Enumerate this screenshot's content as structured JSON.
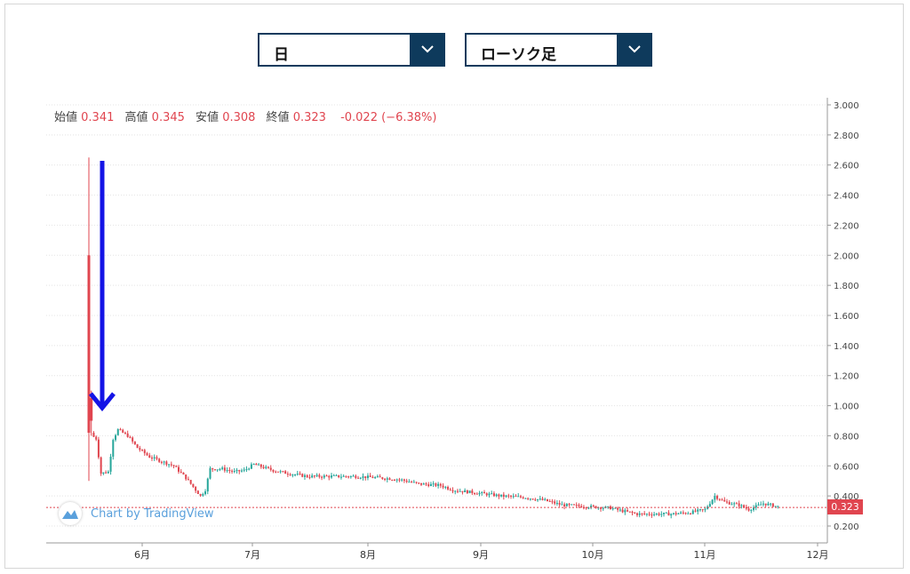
{
  "controls": {
    "period_select": {
      "value": "日",
      "icon": "chevron-down-icon"
    },
    "chart_type_select": {
      "value": "ローソク足",
      "icon": "chevron-down-icon"
    }
  },
  "legend": {
    "open_label": "始値",
    "open_value": "0.341",
    "high_label": "高値",
    "high_value": "0.345",
    "low_label": "安値",
    "low_value": "0.308",
    "close_label": "終値",
    "close_value": "0.323",
    "change": "-0.022 (−6.38%)"
  },
  "attribution": "Chart by TradingView",
  "last_price_label": "0.323",
  "colors": {
    "up": "#26a69a",
    "down": "#e0454f",
    "arrow": "#1414e6",
    "select": "#0e3a5c"
  },
  "chart_data": {
    "type": "candlestick",
    "x_tick_labels": [
      "6月",
      "7月",
      "8月",
      "9月",
      "10月",
      "11月",
      "12月"
    ],
    "y_tick_labels": [
      "3.000",
      "2.800",
      "2.600",
      "2.400",
      "2.200",
      "2.000",
      "1.800",
      "1.600",
      "1.400",
      "1.200",
      "1.000",
      "0.800",
      "0.600",
      "0.400",
      "0.200"
    ],
    "ylim": [
      0.2,
      3.0
    ],
    "y_axis_side": "right",
    "grid": "horizontal-dotted",
    "last_price": 0.323,
    "annotation": "downward arrow pointing to price drop after listing",
    "trend_points": [
      [
        0,
        0.82
      ],
      [
        3,
        0.78
      ],
      [
        5,
        0.55
      ],
      [
        8,
        0.56
      ],
      [
        10,
        0.78
      ],
      [
        12,
        0.84
      ],
      [
        16,
        0.8
      ],
      [
        20,
        0.72
      ],
      [
        25,
        0.66
      ],
      [
        30,
        0.63
      ],
      [
        35,
        0.6
      ],
      [
        40,
        0.52
      ],
      [
        44,
        0.44
      ],
      [
        46,
        0.4
      ],
      [
        48,
        0.44
      ],
      [
        50,
        0.58
      ],
      [
        55,
        0.58
      ],
      [
        60,
        0.56
      ],
      [
        64,
        0.57
      ],
      [
        68,
        0.61
      ],
      [
        72,
        0.59
      ],
      [
        76,
        0.57
      ],
      [
        82,
        0.55
      ],
      [
        90,
        0.53
      ],
      [
        100,
        0.53
      ],
      [
        110,
        0.53
      ],
      [
        120,
        0.52
      ],
      [
        128,
        0.51
      ],
      [
        136,
        0.48
      ],
      [
        145,
        0.47
      ],
      [
        150,
        0.44
      ],
      [
        160,
        0.42
      ],
      [
        170,
        0.4
      ],
      [
        180,
        0.39
      ],
      [
        188,
        0.37
      ],
      [
        195,
        0.34
      ],
      [
        205,
        0.33
      ],
      [
        215,
        0.32
      ],
      [
        220,
        0.3
      ],
      [
        226,
        0.28
      ],
      [
        232,
        0.28
      ],
      [
        240,
        0.28
      ],
      [
        248,
        0.29
      ],
      [
        254,
        0.31
      ],
      [
        258,
        0.4
      ],
      [
        262,
        0.36
      ],
      [
        268,
        0.34
      ],
      [
        272,
        0.31
      ],
      [
        278,
        0.35
      ],
      [
        284,
        0.33
      ]
    ],
    "spikes": [
      {
        "day": 0,
        "open": 2.0,
        "high": 2.65,
        "low": 0.5,
        "close": 0.82
      },
      {
        "day": 1,
        "open": 1.05,
        "high": 1.1,
        "low": 0.8,
        "close": 0.9
      }
    ]
  }
}
